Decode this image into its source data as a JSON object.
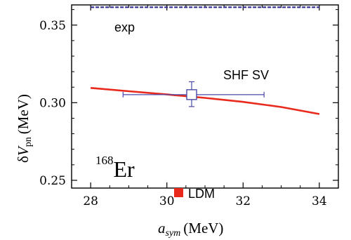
{
  "chart_data": {
    "type": "line",
    "xlim": [
      27.5,
      34.5
    ],
    "ylim": [
      0.245,
      0.363
    ],
    "x_ticks": [
      28,
      30,
      32,
      34
    ],
    "x_tick_labels": [
      "28",
      "30",
      "32",
      "34"
    ],
    "y_ticks": [
      0.25,
      0.3,
      0.35
    ],
    "y_tick_labels": [
      "0.25",
      "0.30",
      "0.35"
    ],
    "xlabel": {
      "main": "a",
      "sub": "sym",
      "unit": "(MeV)"
    },
    "ylabel": {
      "delta": "δ",
      "main": "V",
      "sub": "pn",
      "unit": "(MeV)"
    },
    "grid": false,
    "colors": {
      "ldm": "#e8291c",
      "exp": "#2e2e8f",
      "sv_marker": "#4a4aa8",
      "axis": "#000000"
    },
    "series": [
      {
        "name": "exp",
        "style": "dashed",
        "x": [
          28,
          34
        ],
        "y": [
          0.3615,
          0.3615
        ]
      },
      {
        "name": "LDM",
        "style": "solid",
        "x": [
          28,
          29,
          30,
          31,
          32,
          33,
          34
        ],
        "y": [
          0.3095,
          0.3074,
          0.3053,
          0.3031,
          0.3005,
          0.2972,
          0.2927
        ]
      },
      {
        "name": "SHF SV",
        "style": "marker",
        "points": [
          {
            "x": 30.65,
            "y": 0.3052,
            "x_err": [
              28.85,
              32.55
            ],
            "y_err": [
              0.2975,
              0.3135
            ]
          }
        ]
      }
    ],
    "annotations": {
      "exp_label": "exp",
      "shf_label": "SHF SV",
      "nucleus_mass": "168",
      "nucleus_symbol": "Er",
      "legend_label": "LDM"
    }
  }
}
